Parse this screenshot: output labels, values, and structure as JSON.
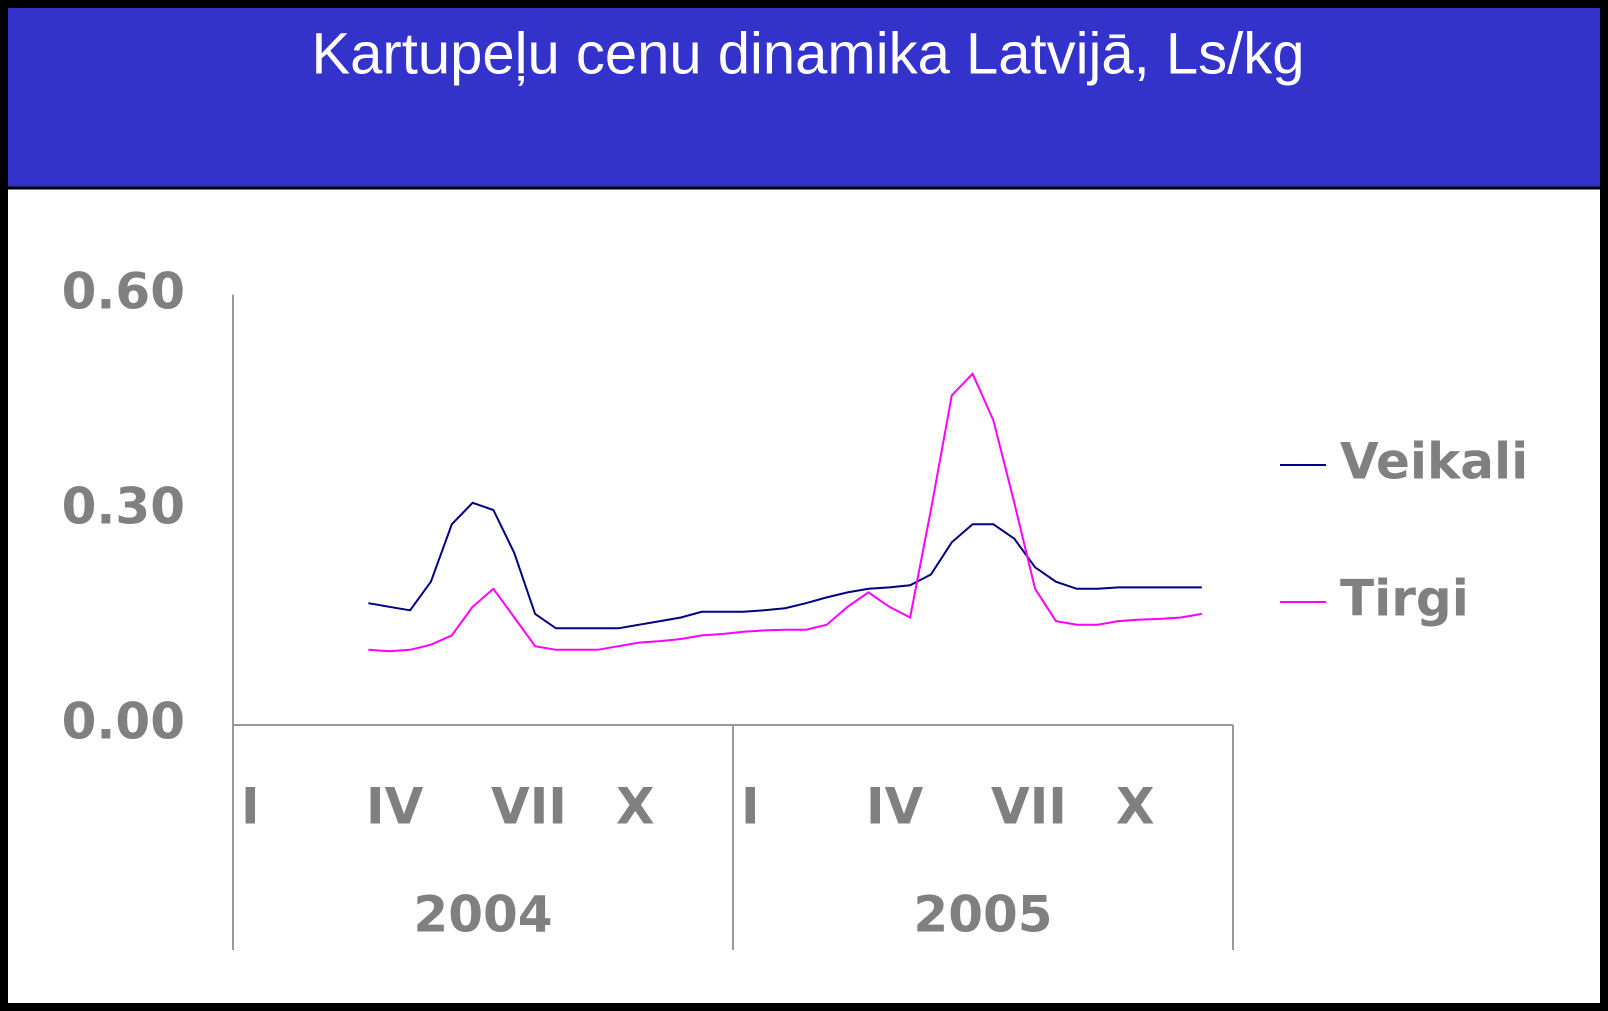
{
  "chart_data": {
    "type": "line",
    "title": "Kartupeļu cenu dinamika Latvijā, Ls/kg",
    "categories": [
      "I",
      null,
      null,
      null,
      null,
      null,
      "IV",
      null,
      null,
      null,
      null,
      null,
      "VII",
      null,
      null,
      null,
      null,
      null,
      "X",
      null,
      null,
      null,
      null,
      null,
      "I",
      null,
      null,
      null,
      null,
      null,
      "IV",
      null,
      null,
      null,
      null,
      null,
      "VII",
      null,
      null,
      null,
      null,
      null,
      "X",
      null,
      null,
      null,
      null,
      null
    ],
    "years": [
      "2004",
      "2005"
    ],
    "series": [
      {
        "name": "Veikali",
        "color": "#000080",
        "values": [
          null,
          null,
          null,
          null,
          null,
          null,
          0.17,
          0.165,
          0.16,
          0.2,
          0.28,
          0.31,
          0.3,
          0.24,
          0.155,
          0.135,
          0.135,
          0.135,
          0.135,
          0.14,
          0.145,
          0.15,
          0.158,
          0.158,
          0.158,
          0.16,
          0.163,
          0.17,
          0.178,
          0.185,
          0.19,
          0.192,
          0.195,
          0.21,
          0.255,
          0.28,
          0.28,
          0.26,
          0.22,
          0.2,
          0.19,
          0.19,
          0.192,
          0.192,
          0.192,
          0.192,
          0.192,
          null
        ]
      },
      {
        "name": "Tirgi",
        "color": "#ff00ff",
        "values": [
          null,
          null,
          null,
          null,
          null,
          null,
          0.105,
          0.103,
          0.105,
          0.112,
          0.125,
          0.165,
          0.19,
          0.15,
          0.11,
          0.105,
          0.105,
          0.105,
          0.11,
          0.115,
          0.117,
          0.12,
          0.125,
          0.127,
          0.13,
          0.132,
          0.133,
          0.133,
          0.14,
          0.165,
          0.185,
          0.165,
          0.15,
          0.3,
          0.46,
          0.49,
          0.425,
          0.31,
          0.19,
          0.145,
          0.14,
          0.14,
          0.145,
          0.147,
          0.148,
          0.15,
          0.155,
          null
        ]
      }
    ],
    "ylim": [
      0,
      0.6
    ],
    "yticks": [
      {
        "value": 0,
        "label": "0.00"
      },
      {
        "value": 0.3,
        "label": "0.30"
      },
      {
        "value": 0.6,
        "label": "0.60"
      }
    ]
  }
}
